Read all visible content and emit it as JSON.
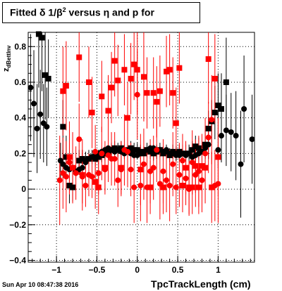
{
  "title": {
    "prefix": "Fitted ",
    "mid": " 1/",
    "exp": "2",
    "suffix": " versus ",
    "tail": " and p for",
    "delta": "δ",
    "beta": "β",
    "eta": "η"
  },
  "ylabel": {
    "main": "z",
    "sub": "dBettInv"
  },
  "xlabel": "TpcTrackLength (cm)",
  "datestamp": "Sun Apr 10 08:47:38 2016",
  "chart_data": {
    "type": "scatter",
    "title": "Fitted δ 1/β² versus η and p for",
    "xlabel": "TpcTrackLength (cm)",
    "ylabel": "z_dBettInv",
    "xlim": [
      -1.35,
      1.45
    ],
    "ylim": [
      -0.41,
      0.88
    ],
    "xticks": [
      -1,
      -0.5,
      0,
      0.5,
      1
    ],
    "xtick_labels": [
      "−1",
      "−0.5",
      "0",
      "0.5",
      "1"
    ],
    "yticks": [
      -0.4,
      -0.2,
      0,
      0.2,
      0.4,
      0.6,
      0.8
    ],
    "ytick_labels": [
      "−0.4",
      "−0.2",
      "0",
      "0.2",
      "0.4",
      "0.6",
      "0.8"
    ],
    "grid": "dotted",
    "series": [
      {
        "color": "#000000",
        "marker": "circle",
        "points": [
          [
            -1.32,
            0.57,
            0.3
          ],
          [
            -1.28,
            0.48,
            0.3
          ],
          [
            -1.24,
            0.34,
            0.25
          ],
          [
            -1.2,
            0.42,
            0.25
          ],
          [
            -1.16,
            0.37,
            0.22
          ],
          [
            -1.12,
            0.35,
            0.22
          ],
          [
            -0.95,
            0.16,
            0.1
          ],
          [
            -0.92,
            0.14,
            0.08
          ],
          [
            -0.88,
            0.12,
            0.06
          ],
          [
            -0.84,
            0.11,
            0.05
          ],
          [
            -0.8,
            0.12,
            0.04
          ],
          [
            -0.76,
            0.1,
            0.03
          ],
          [
            -0.72,
            0.11,
            0.03
          ],
          [
            -0.68,
            0.12,
            0.03
          ],
          [
            -0.64,
            0.15,
            0.03
          ],
          [
            -0.6,
            0.17,
            0.03
          ],
          [
            -0.56,
            0.18,
            0.02
          ],
          [
            -0.52,
            0.19,
            0.02
          ],
          [
            -0.48,
            0.2,
            0.02
          ],
          [
            -0.44,
            0.21,
            0.02
          ],
          [
            -0.4,
            0.22,
            0.02
          ],
          [
            -0.36,
            0.23,
            0.02
          ],
          [
            -0.32,
            0.22,
            0.02
          ],
          [
            -0.28,
            0.21,
            0.02
          ],
          [
            -0.24,
            0.22,
            0.02
          ],
          [
            -0.2,
            0.21,
            0.02
          ],
          [
            -0.16,
            0.2,
            0.02
          ],
          [
            -0.12,
            0.21,
            0.02
          ],
          [
            -0.08,
            0.2,
            0.02
          ],
          [
            -0.04,
            0.19,
            0.02
          ],
          [
            0.0,
            0.19,
            0.02
          ],
          [
            0.04,
            0.2,
            0.02
          ],
          [
            0.08,
            0.21,
            0.02
          ],
          [
            0.12,
            0.22,
            0.02
          ],
          [
            0.16,
            0.23,
            0.02
          ],
          [
            0.2,
            0.23,
            0.02
          ],
          [
            0.24,
            0.22,
            0.02
          ],
          [
            0.28,
            0.22,
            0.02
          ],
          [
            0.32,
            0.21,
            0.02
          ],
          [
            0.36,
            0.22,
            0.02
          ],
          [
            0.4,
            0.2,
            0.02
          ],
          [
            0.44,
            0.2,
            0.02
          ],
          [
            0.48,
            0.19,
            0.03
          ],
          [
            0.52,
            0.19,
            0.03
          ],
          [
            0.56,
            0.2,
            0.03
          ],
          [
            0.6,
            0.19,
            0.03
          ],
          [
            0.64,
            0.2,
            0.03
          ],
          [
            0.68,
            0.18,
            0.03
          ],
          [
            0.72,
            0.19,
            0.04
          ],
          [
            0.76,
            0.2,
            0.04
          ],
          [
            0.8,
            0.21,
            0.05
          ],
          [
            0.84,
            0.23,
            0.06
          ],
          [
            0.88,
            0.25,
            0.08
          ],
          [
            1.0,
            0.22,
            0.1
          ],
          [
            1.04,
            0.3,
            0.15
          ],
          [
            1.1,
            0.33,
            0.2
          ],
          [
            1.16,
            0.32,
            0.22
          ],
          [
            1.22,
            0.3,
            0.25
          ],
          [
            1.28,
            0.14,
            0.3
          ],
          [
            1.32,
            0.45,
            0.3
          ],
          [
            1.42,
            0.28,
            0.25
          ]
        ]
      },
      {
        "color": "#000000",
        "marker": "square",
        "points": [
          [
            -1.22,
            0.87,
            0.3
          ],
          [
            -1.18,
            0.85,
            0.3
          ],
          [
            -1.14,
            0.64,
            0.25
          ],
          [
            -1.1,
            0.62,
            0.22
          ],
          [
            -0.92,
            0.35,
            0.15
          ],
          [
            -0.88,
            0.18,
            0.12
          ],
          [
            -0.84,
            0.02,
            0.1
          ],
          [
            -0.8,
            0.01,
            0.08
          ],
          [
            -0.72,
            0.16,
            0.06
          ],
          [
            -0.68,
            0.17,
            0.05
          ],
          [
            -0.64,
            0.16,
            0.05
          ],
          [
            -0.6,
            0.17,
            0.05
          ],
          [
            -0.56,
            0.18,
            0.04
          ],
          [
            -0.52,
            0.17,
            0.04
          ],
          [
            -0.48,
            0.18,
            0.04
          ],
          [
            -0.44,
            0.19,
            0.04
          ],
          [
            -0.4,
            0.2,
            0.04
          ],
          [
            -0.36,
            0.21,
            0.04
          ],
          [
            -0.32,
            0.22,
            0.04
          ],
          [
            -0.28,
            0.23,
            0.04
          ],
          [
            -0.24,
            0.22,
            0.04
          ],
          [
            -0.2,
            0.23,
            0.04
          ],
          [
            -0.16,
            0.21,
            0.04
          ],
          [
            -0.12,
            0.22,
            0.04
          ],
          [
            -0.08,
            0.23,
            0.04
          ],
          [
            -0.04,
            0.22,
            0.04
          ],
          [
            0.0,
            0.22,
            0.04
          ],
          [
            0.04,
            0.21,
            0.04
          ],
          [
            0.08,
            0.2,
            0.04
          ],
          [
            0.12,
            0.22,
            0.04
          ],
          [
            0.16,
            0.21,
            0.04
          ],
          [
            0.2,
            0.2,
            0.04
          ],
          [
            0.24,
            0.21,
            0.04
          ],
          [
            0.28,
            0.22,
            0.04
          ],
          [
            0.32,
            0.2,
            0.04
          ],
          [
            0.36,
            0.21,
            0.04
          ],
          [
            0.4,
            0.19,
            0.04
          ],
          [
            0.44,
            0.21,
            0.04
          ],
          [
            0.48,
            0.2,
            0.04
          ],
          [
            0.52,
            0.21,
            0.04
          ],
          [
            0.56,
            0.2,
            0.05
          ],
          [
            0.6,
            0.2,
            0.05
          ],
          [
            0.64,
            0.2,
            0.05
          ],
          [
            0.68,
            0.22,
            0.05
          ],
          [
            0.72,
            0.24,
            0.06
          ],
          [
            0.76,
            0.23,
            0.06
          ],
          [
            0.84,
            0.25,
            0.08
          ],
          [
            0.88,
            0.34,
            0.1
          ],
          [
            0.92,
            0.38,
            0.12
          ],
          [
            0.96,
            0.43,
            0.15
          ],
          [
            1.0,
            0.47,
            0.18
          ],
          [
            1.04,
            0.45,
            0.2
          ],
          [
            1.1,
            0.6,
            0.25
          ]
        ]
      },
      {
        "color": "#ff0000",
        "marker": "circle",
        "points": [
          [
            -0.96,
            0.05,
            0.25
          ],
          [
            -0.92,
            0.09,
            0.2
          ],
          [
            -0.88,
            0.07,
            0.2
          ],
          [
            -0.84,
            0.15,
            0.18
          ],
          [
            -0.76,
            0.09,
            0.15
          ],
          [
            -0.72,
            0.28,
            0.2
          ],
          [
            -0.68,
            0.07,
            0.15
          ],
          [
            -0.64,
            0.02,
            0.12
          ],
          [
            -0.6,
            0.08,
            0.12
          ],
          [
            -0.56,
            0.07,
            0.12
          ],
          [
            -0.52,
            0.21,
            0.15
          ],
          [
            -0.48,
            0.09,
            0.12
          ],
          [
            -0.44,
            0.2,
            0.15
          ],
          [
            -0.4,
            0.11,
            0.12
          ],
          [
            -0.36,
            0.19,
            0.15
          ],
          [
            -0.32,
            0.17,
            0.15
          ],
          [
            -0.28,
            0.17,
            0.15
          ],
          [
            -0.24,
            0.05,
            0.15
          ],
          [
            -0.2,
            0.11,
            0.15
          ],
          [
            -0.16,
            0.22,
            0.2
          ],
          [
            -0.12,
            0.21,
            0.2
          ],
          [
            -0.08,
            0.11,
            0.15
          ],
          [
            -0.04,
            0.01,
            0.2
          ],
          [
            0.0,
            0.53,
            0.25
          ],
          [
            0.04,
            0.02,
            0.2
          ],
          [
            0.08,
            0.14,
            0.2
          ],
          [
            0.12,
            0.01,
            0.2
          ],
          [
            0.16,
            0.1,
            0.18
          ],
          [
            0.2,
            0.12,
            0.18
          ],
          [
            0.24,
            0.22,
            0.18
          ],
          [
            0.28,
            0.03,
            0.2
          ],
          [
            0.32,
            0.1,
            0.18
          ],
          [
            0.36,
            0.05,
            0.18
          ],
          [
            0.4,
            0.02,
            0.2
          ],
          [
            0.44,
            0.14,
            0.18
          ],
          [
            0.48,
            0.01,
            0.15
          ],
          [
            0.52,
            0.08,
            0.18
          ],
          [
            0.56,
            0.16,
            0.15
          ],
          [
            0.6,
            0.06,
            0.15
          ],
          [
            0.64,
            0.0,
            0.15
          ],
          [
            0.68,
            0.15,
            0.18
          ],
          [
            0.72,
            0.08,
            0.18
          ],
          [
            0.76,
            0.1,
            0.2
          ],
          [
            0.8,
            0.05,
            0.18
          ],
          [
            0.84,
            0.2,
            0.2
          ],
          [
            0.88,
            0.29,
            0.2
          ],
          [
            0.92,
            0.39,
            0.25
          ],
          [
            0.96,
            0.02,
            0.2
          ],
          [
            1.0,
            0.03,
            0.22
          ]
        ]
      },
      {
        "color": "#ff0000",
        "marker": "square",
        "points": [
          [
            -0.92,
            0.55,
            0.25
          ],
          [
            -0.88,
            0.58,
            0.25
          ],
          [
            -0.84,
            0.18,
            0.2
          ],
          [
            -0.8,
            0.12,
            0.2
          ],
          [
            -0.72,
            0.74,
            0.25
          ],
          [
            -0.68,
            0.08,
            0.2
          ],
          [
            -0.6,
            0.6,
            0.2
          ],
          [
            -0.56,
            0.43,
            0.2
          ],
          [
            -0.52,
            0.04,
            0.15
          ],
          [
            -0.48,
            0.01,
            0.15
          ],
          [
            -0.44,
            0.52,
            0.2
          ],
          [
            -0.4,
            0.12,
            0.15
          ],
          [
            -0.36,
            0.44,
            0.2
          ],
          [
            -0.32,
            0.57,
            0.2
          ],
          [
            -0.28,
            0.72,
            0.2
          ],
          [
            -0.24,
            0.61,
            0.2
          ],
          [
            -0.2,
            0.12,
            0.15
          ],
          [
            -0.16,
            0.67,
            0.2
          ],
          [
            -0.12,
            0.4,
            0.2
          ],
          [
            -0.08,
            0.62,
            0.2
          ],
          [
            -0.04,
            0.7,
            0.2
          ],
          [
            0.0,
            0.67,
            0.25
          ],
          [
            0.04,
            0.11,
            0.2
          ],
          [
            0.08,
            0.63,
            0.25
          ],
          [
            0.12,
            0.54,
            0.2
          ],
          [
            0.16,
            0.01,
            0.15
          ],
          [
            0.2,
            0.54,
            0.2
          ],
          [
            0.24,
            0.49,
            0.2
          ],
          [
            0.28,
            0.55,
            0.2
          ],
          [
            0.32,
            0.01,
            0.15
          ],
          [
            0.36,
            0.66,
            0.2
          ],
          [
            0.4,
            0.67,
            0.2
          ],
          [
            0.44,
            0.54,
            0.2
          ],
          [
            0.48,
            0.37,
            0.2
          ],
          [
            0.52,
            0.68,
            0.2
          ],
          [
            0.56,
            0.02,
            0.15
          ],
          [
            0.6,
            0.12,
            0.15
          ],
          [
            0.64,
            0.01,
            0.15
          ],
          [
            0.68,
            0.01,
            0.15
          ],
          [
            0.72,
            0.13,
            0.15
          ],
          [
            0.76,
            0.01,
            0.15
          ],
          [
            0.8,
            0.13,
            0.18
          ],
          [
            0.84,
            0.12,
            0.2
          ],
          [
            0.88,
            0.73,
            0.25
          ],
          [
            0.92,
            0.01,
            0.2
          ],
          [
            0.96,
            0.62,
            0.25
          ],
          [
            1.0,
            0.18,
            0.22
          ]
        ]
      }
    ]
  }
}
